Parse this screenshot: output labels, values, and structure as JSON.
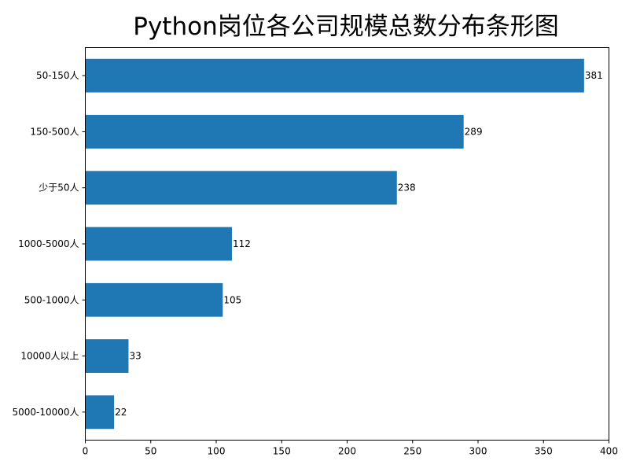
{
  "chart_data": {
    "type": "bar",
    "orientation": "horizontal",
    "title": "Python岗位各公司规模总数分布条形图",
    "xlabel": "",
    "ylabel": "",
    "categories": [
      "50-150人",
      "150-500人",
      "少于50人",
      "1000-5000人",
      "500-1000人",
      "10000人以上",
      "5000-10000人"
    ],
    "values": [
      381,
      289,
      238,
      112,
      105,
      33,
      22
    ],
    "xlim": [
      0,
      400
    ],
    "xticks": [
      0,
      50,
      100,
      150,
      200,
      250,
      300,
      350,
      400
    ],
    "grid": false,
    "legend": "none",
    "bar_color": "#1f77b4"
  }
}
